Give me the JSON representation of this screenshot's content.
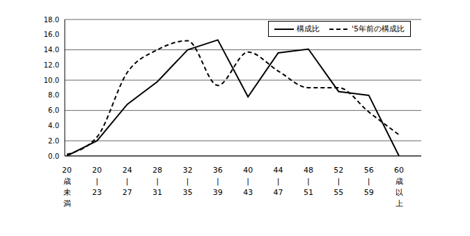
{
  "chart_data": {
    "type": "line",
    "categories": [
      "20歳未満",
      "20|23",
      "24|27",
      "28|31",
      "32|35",
      "36|39",
      "40|43",
      "44|47",
      "48|51",
      "52|55",
      "56|59",
      "60歳以上"
    ],
    "series": [
      {
        "name": "構成比",
        "color": "#000000",
        "line_style": "solid",
        "values": [
          0.0,
          2.0,
          6.8,
          9.8,
          14.0,
          15.3,
          7.8,
          13.6,
          14.1,
          8.5,
          8.0,
          0.0
        ]
      },
      {
        "name": "'5年前の構成比",
        "color": "#000000",
        "line_style": "dashed",
        "values": [
          0.2,
          2.5,
          11.0,
          14.0,
          15.2,
          9.3,
          13.7,
          11.2,
          9.0,
          9.0,
          5.8,
          2.8
        ]
      }
    ],
    "ylim": [
      0,
      18
    ],
    "yticks": [
      {
        "value": 0,
        "label": "0.0"
      },
      {
        "value": 2,
        "label": "2.0"
      },
      {
        "value": 4,
        "label": "4.0"
      },
      {
        "value": 6,
        "label": "6.0"
      },
      {
        "value": 8,
        "label": "8.0"
      },
      {
        "value": 10,
        "label": "10.0"
      },
      {
        "value": 12,
        "label": "12.0"
      },
      {
        "value": 14,
        "label": "14.0"
      },
      {
        "value": 16,
        "label": "16.0"
      },
      {
        "value": 18,
        "label": "18.0"
      }
    ],
    "grid": true,
    "legend": "upper right"
  }
}
